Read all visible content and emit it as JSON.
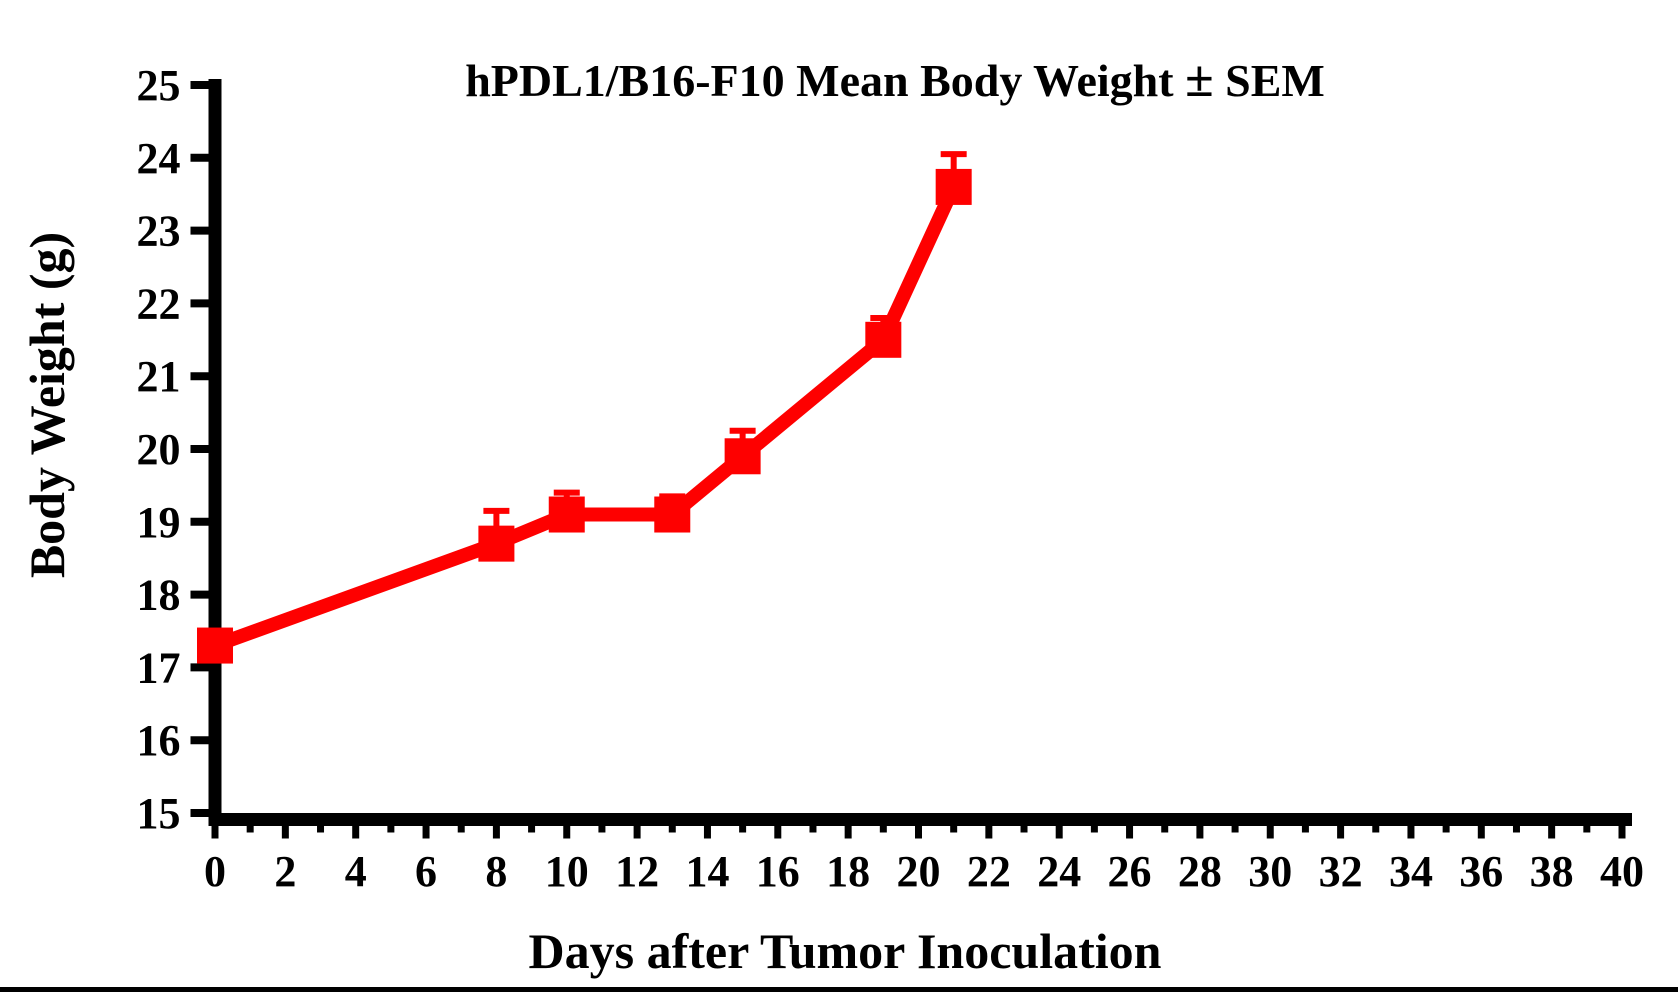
{
  "figure": {
    "title_pm_symbol": "±"
  },
  "chart_data": {
    "type": "line",
    "title": "hPDL1/B16-F10 Mean Body Weight ± SEM",
    "title_main": "hPDL1/B16-F10 Mean Body Weight",
    "title_suffix": "SEM",
    "xlabel": "Days after Tumor Inoculation",
    "ylabel": "Body Weight (g)",
    "x": [
      0,
      8,
      10,
      13,
      15,
      19,
      21
    ],
    "series": [
      {
        "name": "hPDL1/B16-F10",
        "values": [
          17.3,
          18.7,
          19.1,
          19.1,
          19.9,
          21.5,
          23.6
        ],
        "sem_upper": [
          0,
          0.45,
          0.3,
          0.25,
          0.35,
          0.3,
          0.45
        ],
        "color": "#fe0000",
        "marker": "square"
      }
    ],
    "xlim": [
      0,
      40
    ],
    "ylim": [
      15,
      25
    ],
    "x_tick_minor_step": 1,
    "x_tick_major_step": 2,
    "y_tick_step": 1,
    "x_tick_labels": [
      "0",
      "2",
      "4",
      "6",
      "8",
      "10",
      "12",
      "14",
      "16",
      "18",
      "20",
      "22",
      "24",
      "26",
      "28",
      "30",
      "32",
      "34",
      "36",
      "38",
      "40"
    ],
    "y_tick_labels": [
      "15",
      "16",
      "17",
      "18",
      "19",
      "20",
      "21",
      "22",
      "23",
      "24",
      "25"
    ],
    "grid": false,
    "legend": false,
    "axis_color": "#000000",
    "background_color": "#ffffff"
  }
}
